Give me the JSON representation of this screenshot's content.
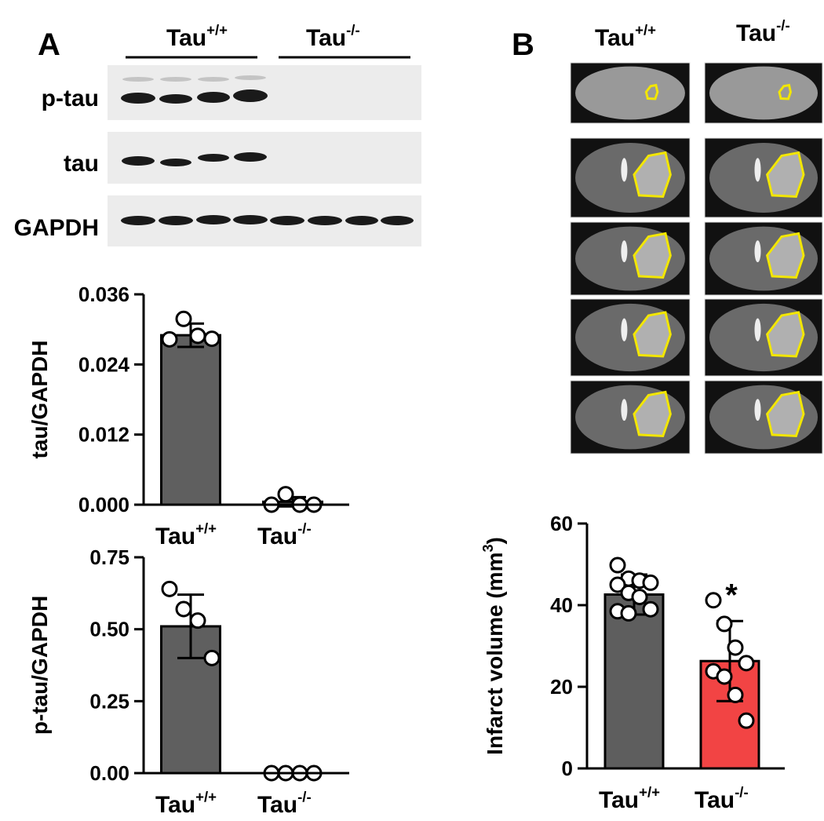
{
  "panel_labels": [
    "A",
    "B"
  ],
  "blot": {
    "genotypes": [
      {
        "name": "Tau",
        "sup": "+/+"
      },
      {
        "name": "Tau",
        "sup": "-/-"
      }
    ],
    "rows": [
      "p-tau",
      "tau",
      "GAPDH"
    ]
  },
  "mri": {
    "genotypes": [
      {
        "name": "Tau",
        "sup": "+/+"
      },
      {
        "name": "Tau",
        "sup": "-/-"
      }
    ]
  },
  "chart_data": [
    {
      "type": "bar",
      "y_label": "tau/GAPDH",
      "categories": [
        "Tau",
        "Tau"
      ],
      "category_superscripts": [
        "+/+",
        "-/-"
      ],
      "values": [
        0.029,
        0.0005
      ],
      "errors": [
        0.002,
        0.0008
      ],
      "points": [
        [
          0.0283,
          0.0318,
          0.0289,
          0.0284
        ],
        [
          0.0,
          0.0018,
          0.0,
          0.0
        ]
      ],
      "colors": [
        "#5f5f5f",
        "#5f5f5f"
      ],
      "ylim": [
        0,
        0.036
      ],
      "yticks": [
        {
          "value": 0,
          "label": "0.000"
        },
        0.012,
        0.024,
        0.036
      ]
    },
    {
      "type": "bar",
      "y_label": "p-tau/GAPDH",
      "categories": [
        "Tau",
        "Tau"
      ],
      "category_superscripts": [
        "+/+",
        "-/-"
      ],
      "values": [
        0.51,
        0
      ],
      "errors": [
        0.11,
        0
      ],
      "points": [
        [
          0.64,
          0.57,
          0.53,
          0.4
        ],
        [
          0,
          0,
          0,
          0
        ]
      ],
      "colors": [
        "#5f5f5f",
        "#5f5f5f"
      ],
      "ylim": [
        0,
        0.75
      ],
      "yticks": [
        {
          "value": 0,
          "label": "0.00"
        },
        0.25,
        {
          "value": 0.5,
          "label": "0.50"
        },
        0.75
      ]
    },
    {
      "type": "bar",
      "y_label": "Infarct volume (mm",
      "y_label_superscript": "3",
      "y_label_end": ")",
      "categories": [
        "Tau",
        "Tau"
      ],
      "category_superscripts": [
        "+/+",
        "-/-"
      ],
      "values": [
        42.6,
        26.3
      ],
      "errors": [
        4.9,
        9.8
      ],
      "points": [
        [
          49.8,
          46.5,
          46,
          45.5,
          45,
          43,
          42,
          39,
          38.5,
          38
        ],
        [
          41.2,
          35.4,
          29.6,
          25.8,
          23.8,
          22.5,
          18,
          11.7
        ]
      ],
      "colors": [
        "#5e5e5e",
        "#f24444"
      ],
      "annotations": [
        "*"
      ],
      "ylim": [
        0,
        60
      ],
      "yticks": [
        0,
        20,
        40,
        60
      ]
    }
  ]
}
